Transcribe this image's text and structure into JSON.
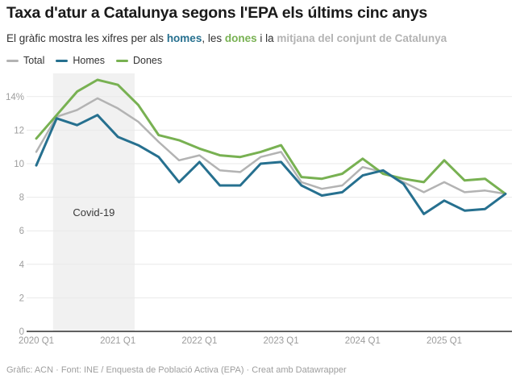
{
  "header": {
    "title": "Taxa d'atur a Catalunya segons l'EPA els últims cinc anys",
    "subtitle_prefix": "El gràfic mostra les xifres per als ",
    "subtitle_homes": "homes",
    "subtitle_sep1": ", les ",
    "subtitle_dones": "dones",
    "subtitle_sep2": " i la ",
    "subtitle_total": "mitjana del conjunt de Catalunya"
  },
  "legend": [
    {
      "label": "Total",
      "color": "#b3b3b3"
    },
    {
      "label": "Homes",
      "color": "#26708f"
    },
    {
      "label": "Dones",
      "color": "#78b152"
    }
  ],
  "chart_data": {
    "type": "line",
    "x": [
      "2020 Q1",
      "2020 Q2",
      "2020 Q3",
      "2020 Q4",
      "2021 Q1",
      "2021 Q2",
      "2021 Q3",
      "2021 Q4",
      "2022 Q1",
      "2022 Q2",
      "2022 Q3",
      "2022 Q4",
      "2023 Q1",
      "2023 Q2",
      "2023 Q3",
      "2023 Q4",
      "2024 Q1",
      "2024 Q2",
      "2024 Q3",
      "2024 Q4",
      "2025 Q1",
      "2025 Q2",
      "2025 Q3",
      "2025 Q4"
    ],
    "series": [
      {
        "name": "Total",
        "color": "#b3b3b3",
        "values": [
          10.7,
          12.8,
          13.2,
          13.9,
          13.3,
          12.5,
          11.3,
          10.2,
          10.5,
          9.6,
          9.5,
          10.4,
          10.7,
          8.9,
          8.5,
          8.7,
          9.8,
          9.5,
          8.9,
          8.3,
          8.9,
          8.3,
          8.4,
          8.2
        ]
      },
      {
        "name": "Homes",
        "color": "#26708f",
        "values": [
          9.9,
          12.7,
          12.3,
          12.9,
          11.6,
          11.1,
          10.4,
          8.9,
          10.1,
          8.7,
          8.7,
          10.0,
          10.1,
          8.7,
          8.1,
          8.3,
          9.3,
          9.6,
          8.8,
          7.0,
          7.8,
          7.2,
          7.3,
          8.2
        ]
      },
      {
        "name": "Dones",
        "color": "#78b152",
        "values": [
          11.5,
          12.9,
          14.3,
          15.0,
          14.7,
          13.5,
          11.7,
          11.4,
          10.9,
          10.5,
          10.4,
          10.7,
          11.1,
          9.2,
          9.1,
          9.4,
          10.3,
          9.4,
          9.1,
          8.9,
          10.2,
          9.0,
          9.1,
          8.2
        ]
      }
    ],
    "x_tick_labels": [
      "2020 Q1",
      "2021 Q1",
      "2022 Q1",
      "2023 Q1",
      "2024 Q1",
      "2025 Q1"
    ],
    "yticks": [
      0,
      2,
      4,
      6,
      8,
      10,
      12,
      14
    ],
    "ytick_top_label": "14%",
    "ylim": [
      0,
      15.5
    ],
    "grid": "horizontal",
    "legend_position": "top-left",
    "annotation": {
      "label": "Covid-19",
      "from": "2020 Q2",
      "to": "2021 Q2",
      "band_color": "#f1f1f1"
    },
    "axis_color": "#2e2e2e",
    "gridline_color": "#e9e9e9",
    "tick_label_color": "#9d9d9d"
  },
  "footer": {
    "credit": "Gràfic: ACN · Font: INE / Enquesta de Població Activa (EPA) · Creat amb Datawrapper"
  }
}
